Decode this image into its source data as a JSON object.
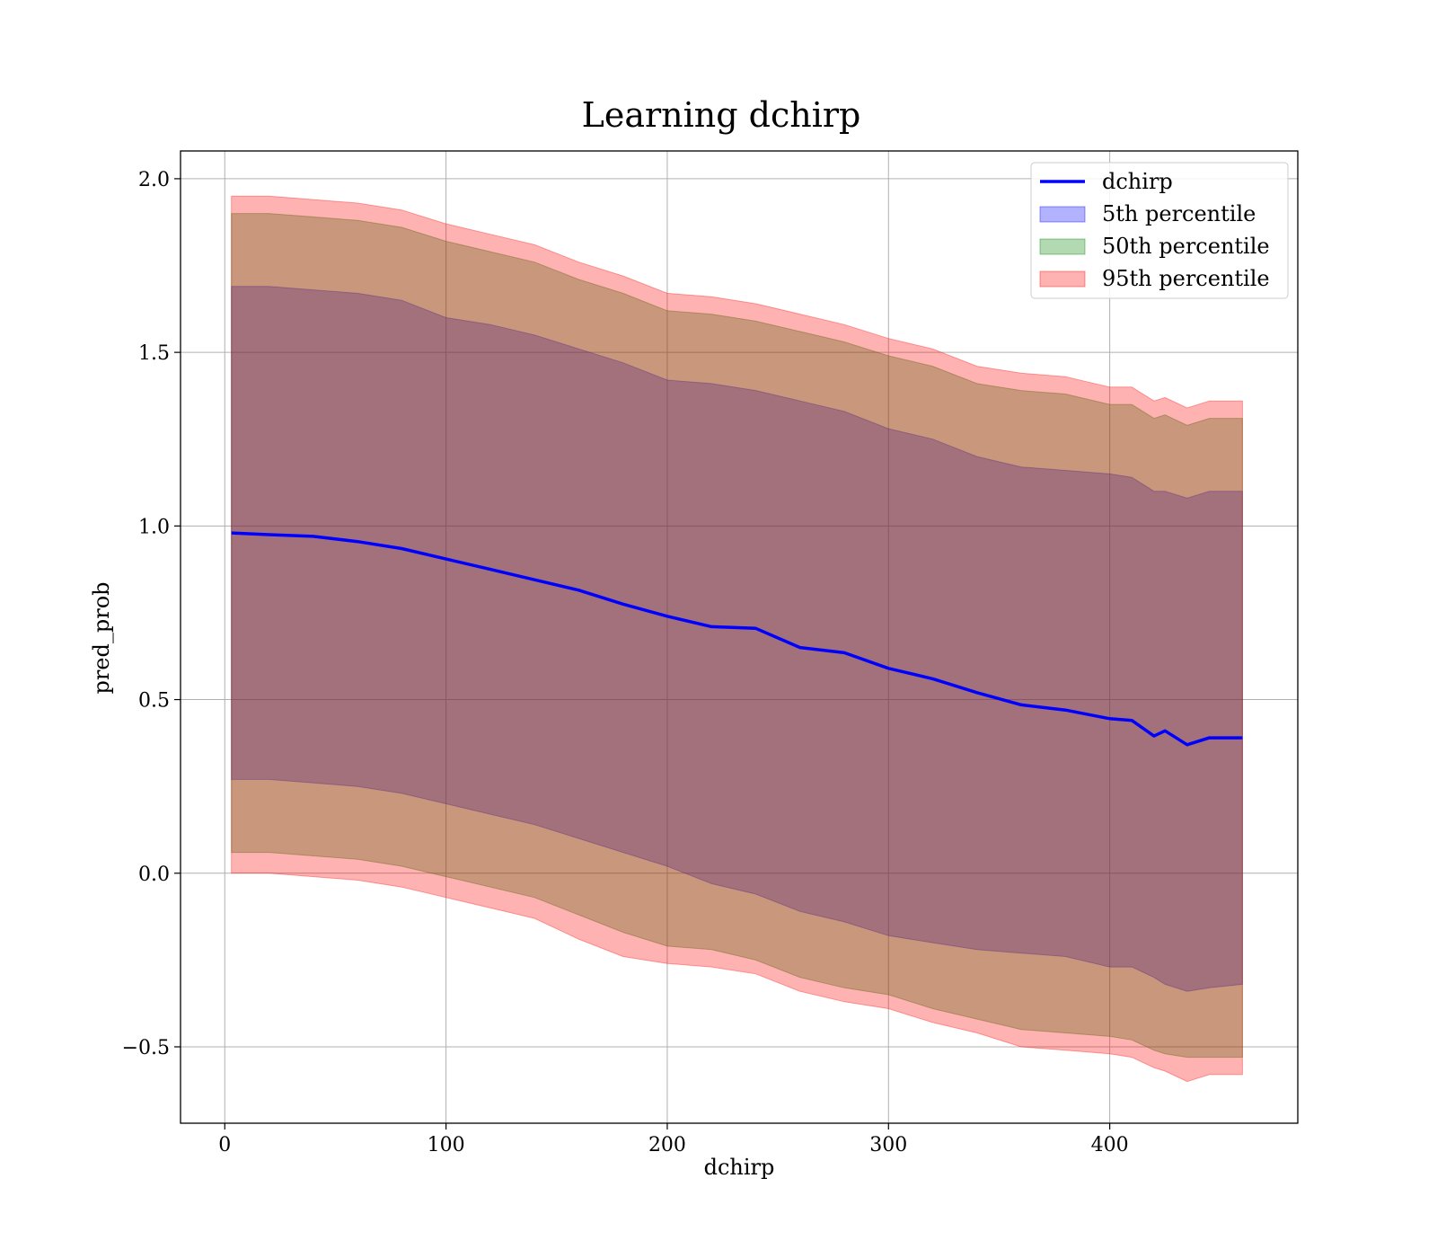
{
  "chart_data": {
    "type": "line",
    "title": "Learning dchirp",
    "xlabel": "dchirp",
    "ylabel": "pred_prob",
    "xlim": [
      -20,
      485
    ],
    "ylim": [
      -0.72,
      2.08
    ],
    "xticks": [
      0,
      100,
      200,
      300,
      400
    ],
    "yticks": [
      -0.5,
      0.0,
      0.5,
      1.0,
      1.5,
      2.0
    ],
    "xtick_labels": [
      "0",
      "100",
      "200",
      "300",
      "400"
    ],
    "ytick_labels": [
      "−0.5",
      "0.0",
      "0.5",
      "1.0",
      "1.5",
      "2.0"
    ],
    "grid": true,
    "legend_position": "top-right",
    "x": [
      3,
      20,
      40,
      60,
      80,
      100,
      120,
      140,
      160,
      180,
      200,
      220,
      240,
      260,
      280,
      300,
      320,
      340,
      360,
      380,
      400,
      410,
      420,
      425,
      435,
      445,
      460
    ],
    "series": [
      {
        "name": "dchirp",
        "kind": "line",
        "color": "#0000ff",
        "values": [
          0.98,
          0.975,
          0.97,
          0.955,
          0.935,
          0.905,
          0.875,
          0.845,
          0.815,
          0.775,
          0.74,
          0.71,
          0.705,
          0.65,
          0.635,
          0.59,
          0.56,
          0.52,
          0.485,
          0.47,
          0.445,
          0.44,
          0.395,
          0.41,
          0.37,
          0.39,
          0.39
        ]
      },
      {
        "name": "5th percentile",
        "kind": "band",
        "color": "#0000ff",
        "lower": [
          0.27,
          0.27,
          0.26,
          0.25,
          0.23,
          0.2,
          0.17,
          0.14,
          0.1,
          0.06,
          0.02,
          -0.03,
          -0.06,
          -0.11,
          -0.14,
          -0.18,
          -0.2,
          -0.22,
          -0.23,
          -0.24,
          -0.27,
          -0.27,
          -0.3,
          -0.32,
          -0.34,
          -0.33,
          -0.32
        ],
        "upper": [
          1.69,
          1.69,
          1.68,
          1.67,
          1.65,
          1.6,
          1.58,
          1.55,
          1.51,
          1.47,
          1.42,
          1.41,
          1.39,
          1.36,
          1.33,
          1.28,
          1.25,
          1.2,
          1.17,
          1.16,
          1.15,
          1.14,
          1.1,
          1.1,
          1.08,
          1.1,
          1.1
        ]
      },
      {
        "name": "50th percentile",
        "kind": "band",
        "color": "#008000",
        "lower": [
          0.06,
          0.06,
          0.05,
          0.04,
          0.02,
          -0.01,
          -0.04,
          -0.07,
          -0.12,
          -0.17,
          -0.21,
          -0.22,
          -0.25,
          -0.3,
          -0.33,
          -0.35,
          -0.39,
          -0.42,
          -0.45,
          -0.46,
          -0.47,
          -0.48,
          -0.51,
          -0.52,
          -0.53,
          -0.53,
          -0.53
        ],
        "upper": [
          1.9,
          1.9,
          1.89,
          1.88,
          1.86,
          1.82,
          1.79,
          1.76,
          1.71,
          1.67,
          1.62,
          1.61,
          1.59,
          1.56,
          1.53,
          1.49,
          1.46,
          1.41,
          1.39,
          1.38,
          1.35,
          1.35,
          1.31,
          1.32,
          1.29,
          1.31,
          1.31
        ]
      },
      {
        "name": "95th percentile",
        "kind": "band",
        "color": "#ff0000",
        "lower": [
          0.0,
          0.0,
          -0.01,
          -0.02,
          -0.04,
          -0.07,
          -0.1,
          -0.13,
          -0.19,
          -0.24,
          -0.26,
          -0.27,
          -0.29,
          -0.34,
          -0.37,
          -0.39,
          -0.43,
          -0.46,
          -0.5,
          -0.51,
          -0.52,
          -0.53,
          -0.56,
          -0.57,
          -0.6,
          -0.58,
          -0.58
        ],
        "upper": [
          1.95,
          1.95,
          1.94,
          1.93,
          1.91,
          1.87,
          1.84,
          1.81,
          1.76,
          1.72,
          1.67,
          1.66,
          1.64,
          1.61,
          1.58,
          1.54,
          1.51,
          1.46,
          1.44,
          1.43,
          1.4,
          1.4,
          1.36,
          1.37,
          1.34,
          1.36,
          1.36
        ]
      }
    ]
  }
}
